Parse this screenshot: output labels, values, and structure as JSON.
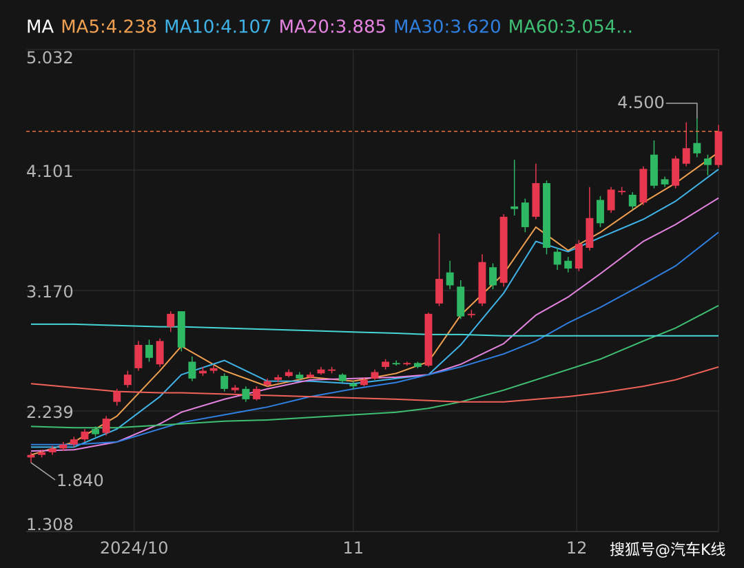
{
  "chart_data": {
    "type": "candlestick",
    "legend_title": "MA",
    "ylim": [
      1.308,
      5.032
    ],
    "yticks": [
      1.308,
      2.239,
      {
        "value": 3.17,
        "label": "3.170"
      },
      4.101,
      5.032
    ],
    "xlim": [
      -0.45,
      64
    ],
    "xticks": [
      {
        "value": 9.6,
        "label": "2024/10"
      },
      {
        "value": 30,
        "label": "11"
      },
      {
        "value": 50.8,
        "label": "12"
      }
    ],
    "grid": true,
    "up_color": "#e8384f",
    "down_color": "#2fb864",
    "candles": {
      "open": [
        1.88,
        1.9,
        1.92,
        1.95,
        1.98,
        2.02,
        2.1,
        2.07,
        2.31,
        2.44,
        2.57,
        2.75,
        2.6,
        2.89,
        3.01,
        2.62,
        2.53,
        2.55,
        2.51,
        2.4,
        2.41,
        2.33,
        2.44,
        2.48,
        2.51,
        2.52,
        2.5,
        2.53,
        2.55,
        2.52,
        2.45,
        2.44,
        2.49,
        2.58,
        2.61,
        2.6,
        2.61,
        2.59,
        3.07,
        3.31,
        3.2,
        2.98,
        3.07,
        3.35,
        3.23,
        3.82,
        3.85,
        3.74,
        4.0,
        3.47,
        3.4,
        3.34,
        3.5,
        3.87,
        3.79,
        3.93,
        3.91,
        3.85,
        4.22,
        4.03,
        3.98,
        4.15,
        4.31,
        4.19,
        4.14
      ],
      "high": [
        1.92,
        1.94,
        1.97,
        2.0,
        2.04,
        2.1,
        2.12,
        2.2,
        2.41,
        2.55,
        2.78,
        2.79,
        2.8,
        3.01,
        3.01,
        2.66,
        2.58,
        2.59,
        2.53,
        2.44,
        2.43,
        2.43,
        2.49,
        2.52,
        2.56,
        2.54,
        2.54,
        2.58,
        2.58,
        2.53,
        2.47,
        2.5,
        2.56,
        2.64,
        2.63,
        2.62,
        2.62,
        3.0,
        3.61,
        3.4,
        3.25,
        3.02,
        3.45,
        3.38,
        3.76,
        4.18,
        3.88,
        4.15,
        4.02,
        3.5,
        3.43,
        3.56,
        3.97,
        3.9,
        3.97,
        3.97,
        3.93,
        4.13,
        4.33,
        4.05,
        4.21,
        4.47,
        4.5,
        4.22,
        4.45
      ],
      "low": [
        1.84,
        1.88,
        1.9,
        1.93,
        1.96,
        2.0,
        2.04,
        2.05,
        2.28,
        2.42,
        2.55,
        2.62,
        2.58,
        2.85,
        2.7,
        2.47,
        2.51,
        2.53,
        2.39,
        2.38,
        2.31,
        2.32,
        2.43,
        2.46,
        2.5,
        2.48,
        2.49,
        2.52,
        2.53,
        2.46,
        2.41,
        2.43,
        2.48,
        2.56,
        2.59,
        2.59,
        2.57,
        2.58,
        3.05,
        3.18,
        2.95,
        2.96,
        3.05,
        3.18,
        3.2,
        3.75,
        3.62,
        3.72,
        3.45,
        3.33,
        3.31,
        3.32,
        3.48,
        3.66,
        3.77,
        3.91,
        3.8,
        3.83,
        3.96,
        3.97,
        3.96,
        4.13,
        4.2,
        4.06,
        4.12
      ],
      "close": [
        1.9,
        1.92,
        1.95,
        1.98,
        2.02,
        2.08,
        2.06,
        2.18,
        2.39,
        2.52,
        2.75,
        2.65,
        2.78,
        2.99,
        2.73,
        2.49,
        2.55,
        2.57,
        2.41,
        2.42,
        2.33,
        2.41,
        2.47,
        2.5,
        2.54,
        2.49,
        2.52,
        2.56,
        2.56,
        2.47,
        2.43,
        2.48,
        2.54,
        2.62,
        2.6,
        2.61,
        2.58,
        2.99,
        3.26,
        3.21,
        2.97,
        2.99,
        3.39,
        3.21,
        3.74,
        3.8,
        3.66,
        4.0,
        3.5,
        3.37,
        3.34,
        3.53,
        3.73,
        3.69,
        3.95,
        3.94,
        3.82,
        4.11,
        3.98,
        3.99,
        4.19,
        4.27,
        4.23,
        4.14,
        4.4
      ]
    },
    "ma_x": [
      0,
      4,
      8,
      12,
      14,
      18,
      22,
      26,
      30,
      34,
      37,
      40,
      44,
      47,
      50,
      53,
      57,
      60,
      64
    ],
    "series": [
      {
        "name": "MA5:4.238",
        "color": "#f0a050",
        "values": [
          1.9,
          2.0,
          2.2,
          2.55,
          2.74,
          2.55,
          2.43,
          2.5,
          2.47,
          2.53,
          2.62,
          2.98,
          3.3,
          3.66,
          3.48,
          3.62,
          3.85,
          4.0,
          4.238
        ]
      },
      {
        "name": "MA10:4.107",
        "color": "#3fb3e8",
        "values": [
          1.96,
          1.96,
          2.1,
          2.35,
          2.52,
          2.63,
          2.47,
          2.47,
          2.45,
          2.49,
          2.52,
          2.75,
          3.15,
          3.55,
          3.47,
          3.58,
          3.72,
          3.86,
          4.107
        ]
      },
      {
        "name": "MA20:3.885",
        "color": "#e483e0",
        "values": [
          1.93,
          1.94,
          2.0,
          2.14,
          2.23,
          2.33,
          2.41,
          2.48,
          2.49,
          2.5,
          2.52,
          2.6,
          2.76,
          2.98,
          3.12,
          3.3,
          3.55,
          3.68,
          3.885
        ]
      },
      {
        "name": "MA30:3.620",
        "color": "#2f7fe0",
        "values": [
          1.98,
          1.98,
          2.0,
          2.1,
          2.15,
          2.21,
          2.27,
          2.35,
          2.41,
          2.46,
          2.52,
          2.58,
          2.68,
          2.78,
          2.92,
          3.04,
          3.22,
          3.36,
          3.62
        ]
      },
      {
        "name": "MA60:3.054...",
        "color": "#3fbf74",
        "values": [
          2.12,
          2.11,
          2.11,
          2.13,
          2.14,
          2.16,
          2.17,
          2.19,
          2.21,
          2.23,
          2.26,
          2.31,
          2.4,
          2.48,
          2.56,
          2.64,
          2.78,
          2.88,
          3.054
        ]
      },
      {
        "color": "#47d6d6",
        "values": [
          2.91,
          2.91,
          2.9,
          2.89,
          2.89,
          2.88,
          2.87,
          2.86,
          2.85,
          2.84,
          2.83,
          2.83,
          2.82,
          2.82,
          2.82,
          2.82,
          2.82,
          2.82,
          2.82
        ]
      },
      {
        "color": "#f0625a",
        "values": [
          2.45,
          2.42,
          2.39,
          2.38,
          2.38,
          2.37,
          2.36,
          2.35,
          2.34,
          2.33,
          2.32,
          2.31,
          2.31,
          2.33,
          2.35,
          2.38,
          2.43,
          2.48,
          2.58
        ]
      }
    ],
    "price_line": 4.4,
    "price_line_color": "#e8703a",
    "annotations": [
      {
        "x": 62,
        "value": 4.5,
        "label": "4.500"
      },
      {
        "x": 0,
        "value": 1.84,
        "label": "1.840"
      }
    ],
    "watermark": "搜狐号@汽车K线"
  }
}
